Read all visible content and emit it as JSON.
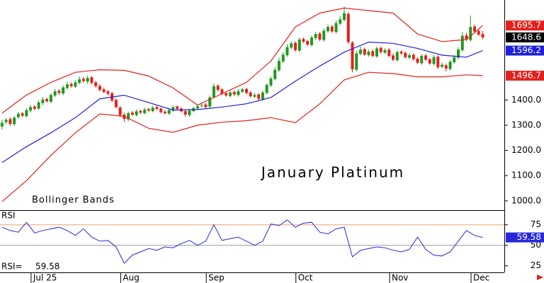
{
  "chart_data": [
    {
      "type": "candlestick",
      "title": "January Platinum",
      "annotation": "Bollinger Bands",
      "up_color": "#1f9a1f",
      "down_color": "#e3211c",
      "last_price_color": "#000000",
      "xlim": [
        -0.5,
        123.3
      ],
      "ylim": [
        963,
        1797
      ],
      "yticks": [
        {
          "value": 1000,
          "label": "1000.0"
        },
        {
          "value": 1100,
          "label": "1100.0"
        },
        {
          "value": 1200,
          "label": "1200.0"
        },
        {
          "value": 1300,
          "label": "1300.0"
        },
        {
          "value": 1400,
          "label": "1400.0"
        }
      ],
      "open": [
        1295,
        1312,
        1324,
        1304,
        1332,
        1347,
        1336,
        1358,
        1374,
        1366,
        1388,
        1404,
        1393,
        1418,
        1437,
        1426,
        1448,
        1464,
        1453,
        1468,
        1484,
        1473,
        1490,
        1470,
        1456,
        1442,
        1434,
        1427,
        1400,
        1370,
        1342,
        1323,
        1350,
        1340,
        1357,
        1348,
        1364,
        1356,
        1372,
        1366,
        1354,
        1346,
        1358,
        1374,
        1366,
        1356,
        1340,
        1356,
        1366,
        1377,
        1382,
        1374,
        1412,
        1457,
        1442,
        1427,
        1416,
        1432,
        1420,
        1433,
        1444,
        1430,
        1413,
        1422,
        1403,
        1428,
        1458,
        1483,
        1518,
        1553,
        1578,
        1608,
        1627,
        1596,
        1642,
        1634,
        1618,
        1646,
        1664,
        1638,
        1673,
        1692,
        1670,
        1703,
        1718,
        1742,
        1628,
        1520,
        1583,
        1602,
        1578,
        1594,
        1573,
        1607,
        1588,
        1600,
        1577,
        1558,
        1592,
        1587,
        1568,
        1580,
        1564,
        1546,
        1577,
        1562,
        1543,
        1572,
        1532,
        1538,
        1523,
        1550,
        1568,
        1598,
        1657,
        1638,
        1692,
        1674,
        1662
      ],
      "high": [
        1322,
        1328,
        1332,
        1336,
        1353,
        1352,
        1367,
        1381,
        1380,
        1398,
        1412,
        1410,
        1427,
        1444,
        1443,
        1458,
        1472,
        1470,
        1478,
        1494,
        1492,
        1497,
        1495,
        1476,
        1463,
        1450,
        1440,
        1432,
        1408,
        1376,
        1350,
        1354,
        1357,
        1363,
        1362,
        1370,
        1369,
        1377,
        1378,
        1371,
        1360,
        1367,
        1378,
        1379,
        1372,
        1361,
        1365,
        1374,
        1383,
        1387,
        1388,
        1418,
        1467,
        1463,
        1447,
        1433,
        1437,
        1438,
        1443,
        1449,
        1449,
        1436,
        1428,
        1427,
        1437,
        1466,
        1493,
        1530,
        1567,
        1590,
        1622,
        1634,
        1633,
        1648,
        1648,
        1639,
        1656,
        1671,
        1669,
        1683,
        1700,
        1698,
        1715,
        1732,
        1770,
        1750,
        1634,
        1595,
        1612,
        1608,
        1600,
        1600,
        1613,
        1612,
        1605,
        1606,
        1585,
        1597,
        1597,
        1593,
        1586,
        1586,
        1569,
        1582,
        1583,
        1567,
        1578,
        1577,
        1548,
        1545,
        1558,
        1578,
        1609,
        1670,
        1667,
        1735,
        1700,
        1684,
        1674
      ],
      "low": [
        1283,
        1304,
        1297,
        1298,
        1325,
        1332,
        1330,
        1351,
        1359,
        1361,
        1380,
        1389,
        1388,
        1412,
        1421,
        1419,
        1442,
        1449,
        1448,
        1462,
        1469,
        1465,
        1462,
        1449,
        1434,
        1427,
        1418,
        1392,
        1367,
        1332,
        1313,
        1315,
        1336,
        1335,
        1344,
        1343,
        1352,
        1351,
        1359,
        1346,
        1342,
        1341,
        1352,
        1360,
        1349,
        1334,
        1334,
        1351,
        1361,
        1371,
        1366,
        1367,
        1406,
        1434,
        1419,
        1413,
        1410,
        1415,
        1414,
        1428,
        1422,
        1409,
        1407,
        1395,
        1397,
        1423,
        1452,
        1478,
        1512,
        1547,
        1572,
        1602,
        1590,
        1591,
        1626,
        1614,
        1613,
        1640,
        1634,
        1632,
        1667,
        1666,
        1664,
        1697,
        1712,
        1622,
        1510,
        1514,
        1578,
        1574,
        1572,
        1569,
        1568,
        1584,
        1582,
        1569,
        1554,
        1553,
        1579,
        1564,
        1562,
        1556,
        1543,
        1540,
        1554,
        1540,
        1537,
        1522,
        1526,
        1513,
        1517,
        1544,
        1562,
        1592,
        1634,
        1632,
        1665,
        1654,
        1641
      ],
      "close": [
        1310,
        1322,
        1305,
        1330,
        1345,
        1338,
        1360,
        1372,
        1365,
        1390,
        1402,
        1395,
        1420,
        1435,
        1428,
        1450,
        1462,
        1455,
        1470,
        1482,
        1475,
        1488,
        1468,
        1455,
        1440,
        1432,
        1425,
        1398,
        1372,
        1340,
        1325,
        1348,
        1342,
        1355,
        1350,
        1362,
        1358,
        1370,
        1365,
        1352,
        1348,
        1360,
        1372,
        1365,
        1355,
        1342,
        1358,
        1368,
        1375,
        1380,
        1372,
        1410,
        1455,
        1440,
        1425,
        1418,
        1430,
        1422,
        1435,
        1442,
        1428,
        1415,
        1420,
        1405,
        1430,
        1460,
        1485,
        1520,
        1555,
        1580,
        1610,
        1625,
        1598,
        1640,
        1632,
        1620,
        1648,
        1662,
        1640,
        1675,
        1690,
        1672,
        1705,
        1720,
        1745,
        1630,
        1522,
        1585,
        1600,
        1580,
        1592,
        1575,
        1605,
        1590,
        1598,
        1575,
        1560,
        1590,
        1585,
        1570,
        1578,
        1562,
        1548,
        1575,
        1560,
        1545,
        1570,
        1530,
        1540,
        1525,
        1552,
        1570,
        1600,
        1655,
        1640,
        1690,
        1672,
        1660,
        1648.6
      ],
      "series": [
        {
          "color": "#e3211c",
          "x": [
            0,
            6,
            12,
            18,
            24,
            30,
            36,
            42,
            48,
            54,
            60,
            66,
            72,
            78,
            84,
            90,
            96,
            102,
            108,
            114,
            118
          ],
          "values": [
            1348,
            1420,
            1470,
            1510,
            1520,
            1518,
            1495,
            1448,
            1380,
            1425,
            1470,
            1555,
            1690,
            1745,
            1765,
            1755,
            1745,
            1662,
            1632,
            1640,
            1695.7
          ]
        },
        {
          "color": "#1f1fdc",
          "x": [
            0,
            6,
            12,
            18,
            24,
            30,
            36,
            42,
            48,
            54,
            60,
            66,
            72,
            78,
            84,
            90,
            96,
            102,
            108,
            114,
            118
          ],
          "values": [
            1152,
            1215,
            1270,
            1330,
            1405,
            1419,
            1390,
            1360,
            1362,
            1372,
            1385,
            1410,
            1475,
            1535,
            1590,
            1630,
            1625,
            1605,
            1578,
            1570,
            1596.2
          ]
        },
        {
          "color": "#e3211c",
          "x": [
            0,
            6,
            12,
            18,
            24,
            30,
            36,
            42,
            48,
            54,
            60,
            66,
            72,
            78,
            84,
            90,
            96,
            102,
            108,
            114,
            118
          ],
          "values": [
            997,
            1080,
            1180,
            1270,
            1345,
            1335,
            1288,
            1272,
            1300,
            1312,
            1318,
            1330,
            1310,
            1385,
            1480,
            1510,
            1505,
            1492,
            1492,
            1500,
            1496.7
          ]
        }
      ]
    },
    {
      "type": "line",
      "title": "RSI",
      "xlim": [
        -0.5,
        123.3
      ],
      "ylim": [
        17,
        92
      ],
      "yticks": [
        25,
        50,
        75
      ],
      "hlines": [
        {
          "value": 75,
          "color": "#f0a070"
        },
        {
          "value": 50,
          "color": "#999999"
        }
      ],
      "xticks": [
        {
          "value": 8,
          "label": "Jul 25"
        },
        {
          "value": 30,
          "label": "Aug"
        },
        {
          "value": 51,
          "label": "Sep"
        },
        {
          "value": 73,
          "label": "Oct"
        },
        {
          "value": 96,
          "label": "Nov"
        },
        {
          "value": 116,
          "label": "Dec"
        }
      ],
      "series": [
        {
          "name": "RSI=",
          "color": "#2828d8",
          "x": [
            0,
            2,
            4,
            6,
            8,
            10,
            12,
            14,
            16,
            18,
            20,
            22,
            24,
            26,
            28,
            30,
            32,
            34,
            36,
            38,
            40,
            42,
            44,
            46,
            48,
            50,
            52,
            54,
            56,
            58,
            60,
            62,
            64,
            66,
            68,
            70,
            72,
            74,
            76,
            78,
            80,
            82,
            84,
            86,
            88,
            90,
            92,
            94,
            96,
            98,
            100,
            102,
            104,
            106,
            108,
            110,
            112,
            114,
            116,
            118
          ],
          "values": [
            72,
            68,
            66,
            78,
            65,
            68,
            70,
            72,
            68,
            62,
            70,
            60,
            55,
            56,
            48,
            28,
            38,
            42,
            46,
            44,
            48,
            47,
            52,
            56,
            50,
            55,
            75,
            56,
            58,
            60,
            55,
            50,
            55,
            76,
            74,
            81,
            72,
            77,
            78,
            66,
            64,
            70,
            72,
            36,
            44,
            46,
            48,
            47,
            44,
            42,
            45,
            60,
            45,
            38,
            37,
            42,
            55,
            68,
            62,
            59.58
          ]
        }
      ]
    }
  ]
}
